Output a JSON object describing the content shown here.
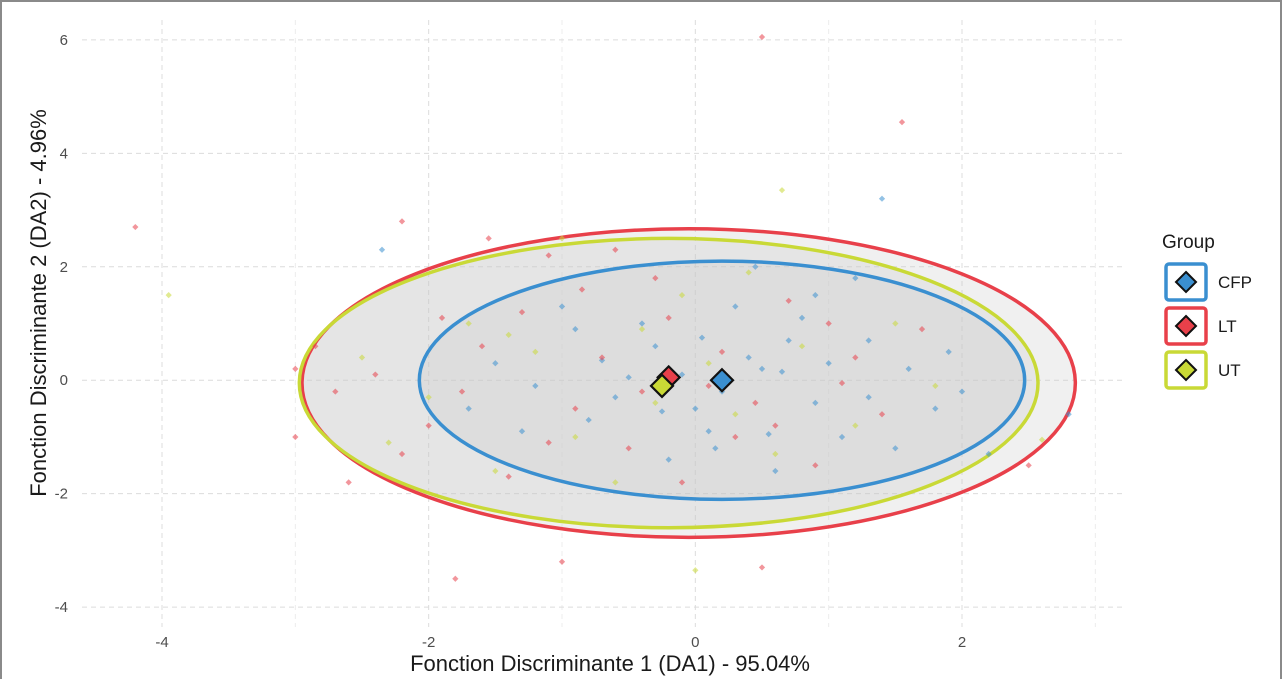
{
  "chart_data": {
    "type": "scatter",
    "title": "",
    "xlabel": "Fonction Discriminante 1 (DA1) - 95.04%",
    "ylabel": "Fonction Discriminante 2 (DA2) - 4.96%",
    "xlim": [
      -4.6,
      3.2
    ],
    "ylim": [
      -4.35,
      6.35
    ],
    "x_ticks": [
      -4,
      -2,
      0,
      2
    ],
    "y_ticks": [
      -4,
      -2,
      0,
      2,
      4,
      6
    ],
    "grid": true,
    "legend": {
      "title": "Group",
      "placement": "right",
      "entries": [
        {
          "label": "CFP",
          "color": "#3a8fd0"
        },
        {
          "label": "LT",
          "color": "#e8404a"
        },
        {
          "label": "UT",
          "color": "#c9d936"
        }
      ]
    },
    "series": [
      {
        "name": "CFP",
        "color": "#3a8fd0",
        "centroid": [
          0.2,
          0.0
        ],
        "ellipse": {
          "center": [
            0.2,
            0.0
          ],
          "rx": 2.27,
          "ry": 2.1
        },
        "points": [
          [
            -2.35,
            2.3
          ],
          [
            1.4,
            3.2
          ],
          [
            2.8,
            -0.6
          ],
          [
            2.2,
            -1.3
          ],
          [
            1.3,
            0.7
          ],
          [
            0.9,
            -0.4
          ],
          [
            0.5,
            0.2
          ],
          [
            0.1,
            -0.9
          ],
          [
            -0.3,
            0.6
          ],
          [
            -0.6,
            -0.3
          ],
          [
            -0.9,
            0.9
          ],
          [
            -1.2,
            -0.1
          ],
          [
            -1.5,
            0.3
          ],
          [
            0.8,
            1.1
          ],
          [
            1.1,
            -1.0
          ],
          [
            0.3,
            1.3
          ],
          [
            -0.2,
            -1.4
          ],
          [
            0.6,
            -1.6
          ],
          [
            1.6,
            0.2
          ],
          [
            1.8,
            -0.5
          ],
          [
            0.4,
            0.4
          ],
          [
            -0.1,
            0.1
          ],
          [
            0.0,
            -0.5
          ],
          [
            0.7,
            0.7
          ],
          [
            -0.4,
            1.0
          ],
          [
            1.0,
            0.3
          ],
          [
            1.3,
            -0.3
          ],
          [
            -0.8,
            -0.7
          ],
          [
            0.2,
            -0.2
          ],
          [
            -1.0,
            1.3
          ],
          [
            0.9,
            1.5
          ],
          [
            1.5,
            -1.2
          ],
          [
            -1.7,
            -0.5
          ],
          [
            0.55,
            -0.95
          ],
          [
            -0.5,
            0.05
          ],
          [
            0.05,
            0.75
          ],
          [
            1.9,
            0.5
          ],
          [
            -0.25,
            -0.55
          ],
          [
            0.65,
            0.15
          ],
          [
            1.2,
            1.8
          ],
          [
            -0.7,
            0.35
          ],
          [
            0.15,
            -1.2
          ],
          [
            0.45,
            2.0
          ],
          [
            -1.3,
            -0.9
          ],
          [
            2.0,
            -0.2
          ]
        ]
      },
      {
        "name": "LT",
        "color": "#e8404a",
        "centroid": [
          -0.2,
          0.05
        ],
        "ellipse": {
          "center": [
            -0.05,
            -0.05
          ],
          "rx": 2.9,
          "ry": 2.72
        },
        "points": [
          [
            -4.2,
            2.7
          ],
          [
            0.5,
            6.05
          ],
          [
            1.55,
            4.55
          ],
          [
            -2.2,
            2.8
          ],
          [
            -1.8,
            -3.5
          ],
          [
            0.5,
            -3.3
          ],
          [
            -1.0,
            -3.2
          ],
          [
            -3.0,
            -1.0
          ],
          [
            -3.0,
            0.2
          ],
          [
            -2.6,
            -1.8
          ],
          [
            2.5,
            -1.5
          ],
          [
            -1.1,
            2.2
          ],
          [
            -0.3,
            1.8
          ],
          [
            0.6,
            -0.8
          ],
          [
            -0.9,
            -0.5
          ],
          [
            -1.6,
            0.6
          ],
          [
            -2.0,
            -0.8
          ],
          [
            1.0,
            1.0
          ],
          [
            -0.5,
            -1.2
          ],
          [
            0.2,
            0.5
          ],
          [
            -1.3,
            1.2
          ],
          [
            1.4,
            -0.6
          ],
          [
            -0.7,
            0.4
          ],
          [
            -2.4,
            0.1
          ],
          [
            -1.9,
            1.1
          ],
          [
            0.9,
            -1.5
          ],
          [
            -1.4,
            -1.7
          ],
          [
            0.1,
            -0.1
          ],
          [
            -0.2,
            1.1
          ],
          [
            1.7,
            0.9
          ],
          [
            -2.7,
            -0.2
          ],
          [
            -0.4,
            -0.2
          ],
          [
            0.3,
            -1.0
          ],
          [
            -1.1,
            -1.1
          ],
          [
            0.7,
            1.4
          ],
          [
            -1.55,
            2.5
          ],
          [
            1.2,
            0.4
          ],
          [
            -0.85,
            1.6
          ],
          [
            -2.2,
            -1.3
          ],
          [
            0.45,
            -0.4
          ],
          [
            -0.1,
            -1.8
          ],
          [
            -1.75,
            -0.2
          ],
          [
            1.1,
            -0.05
          ],
          [
            -0.6,
            2.3
          ],
          [
            -2.85,
            0.6
          ]
        ]
      },
      {
        "name": "UT",
        "color": "#c9d936",
        "centroid": [
          -0.25,
          -0.1
        ],
        "ellipse": {
          "center": [
            -0.2,
            -0.05
          ],
          "rx": 2.77,
          "ry": 2.55
        },
        "points": [
          [
            -3.95,
            1.5
          ],
          [
            0.65,
            3.35
          ],
          [
            0.0,
            -3.35
          ],
          [
            2.6,
            -1.05
          ],
          [
            -1.0,
            2.5
          ],
          [
            -2.5,
            0.4
          ],
          [
            -1.5,
            -1.6
          ],
          [
            0.8,
            0.6
          ],
          [
            -0.4,
            0.9
          ],
          [
            0.6,
            -1.3
          ],
          [
            -1.2,
            0.5
          ],
          [
            -0.9,
            -1.0
          ],
          [
            1.5,
            1.0
          ],
          [
            -0.1,
            1.5
          ],
          [
            -2.0,
            -0.3
          ],
          [
            0.3,
            -0.6
          ],
          [
            1.2,
            -0.8
          ],
          [
            -0.6,
            -1.8
          ],
          [
            -1.7,
            1.0
          ],
          [
            -2.3,
            -1.1
          ],
          [
            0.4,
            1.9
          ],
          [
            1.8,
            -0.1
          ],
          [
            -0.3,
            -0.4
          ],
          [
            -1.4,
            0.8
          ],
          [
            0.1,
            0.3
          ]
        ]
      }
    ]
  }
}
